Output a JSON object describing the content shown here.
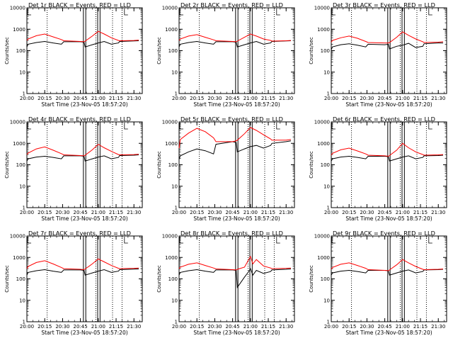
{
  "chart_data": [
    {
      "type": "line",
      "title": "Det 1r  BLACK = Events, RED = LLD",
      "xlabel": "Start Time (23-Nov-05 18:57:20)",
      "ylabel": "Counts/sec",
      "xlim": [
        "20:00",
        "21:37"
      ],
      "ylim": [
        1,
        10000
      ],
      "yscale": "log",
      "x_tick_labels": [
        "20:00",
        "20:15",
        "20:30",
        "20:45",
        "21:00",
        "21:15",
        "21:30"
      ],
      "y_tick_labels": [
        "1",
        "10",
        "100",
        "1000",
        "10000"
      ],
      "legend": "in title",
      "series": [
        {
          "color": "#000000",
          "x": [
            "20:00",
            "20:01",
            "20:08",
            "20:15",
            "20:22",
            "20:29",
            "20:31",
            "20:45",
            "20:48",
            "20:49",
            "20:55",
            "21:00",
            "21:05",
            "21:11",
            "21:17",
            "21:18",
            "21:30",
            "21:34"
          ],
          "y": [
            150,
            200,
            240,
            270,
            230,
            200,
            260,
            260,
            250,
            150,
            190,
            230,
            270,
            200,
            230,
            270,
            285,
            290
          ]
        },
        {
          "color": "#ff0000",
          "x": [
            "20:00",
            "20:01",
            "20:08",
            "20:15",
            "20:22",
            "20:29",
            "20:31",
            "20:45",
            "20:48",
            "20:49",
            "20:55",
            "21:00",
            "21:05",
            "21:11",
            "21:17",
            "21:18",
            "21:30",
            "21:34"
          ],
          "y": [
            300,
            350,
            500,
            600,
            440,
            330,
            290,
            270,
            260,
            280,
            480,
            800,
            600,
            400,
            300,
            290,
            300,
            310
          ]
        }
      ]
    },
    {
      "type": "line",
      "title": "Det 2r  BLACK = Events, RED = LLD",
      "xlabel": "Start Time (23-Nov-05 18:57:20)",
      "ylabel": "Counts/sec",
      "xlim": [
        "20:00",
        "21:37"
      ],
      "ylim": [
        1,
        10000
      ],
      "yscale": "log",
      "x_tick_labels": [
        "20:00",
        "20:15",
        "20:30",
        "20:45",
        "21:00",
        "21:15",
        "21:30"
      ],
      "y_tick_labels": [
        "1",
        "10",
        "100",
        "1000",
        "10000"
      ],
      "legend": "in title",
      "series": [
        {
          "color": "#000000",
          "x": [
            "20:00",
            "20:01",
            "20:08",
            "20:15",
            "20:22",
            "20:29",
            "20:31",
            "20:45",
            "20:48",
            "20:49",
            "20:55",
            "21:00",
            "21:05",
            "21:11",
            "21:17",
            "21:18",
            "21:30",
            "21:34"
          ],
          "y": [
            150,
            200,
            240,
            270,
            230,
            200,
            260,
            260,
            250,
            150,
            190,
            230,
            270,
            200,
            230,
            270,
            285,
            290
          ]
        },
        {
          "color": "#ff0000",
          "x": [
            "20:00",
            "20:01",
            "20:08",
            "20:15",
            "20:22",
            "20:29",
            "20:31",
            "20:45",
            "20:48",
            "20:49",
            "20:55",
            "21:00",
            "21:05",
            "21:11",
            "21:17",
            "21:18",
            "21:30",
            "21:34"
          ],
          "y": [
            300,
            350,
            480,
            560,
            420,
            320,
            290,
            270,
            260,
            280,
            420,
            600,
            480,
            350,
            300,
            280,
            290,
            300
          ]
        }
      ]
    },
    {
      "type": "line",
      "title": "Det 3r  BLACK = Events, RED = LLD",
      "xlabel": "Start Time (23-Nov-05 18:57:20)",
      "ylabel": "Counts/sec",
      "xlim": [
        "20:00",
        "21:37"
      ],
      "ylim": [
        1,
        10000
      ],
      "yscale": "log",
      "x_tick_labels": [
        "20:00",
        "20:15",
        "20:30",
        "20:45",
        "21:00",
        "21:15",
        "21:30"
      ],
      "y_tick_labels": [
        "1",
        "10",
        "100",
        "1000",
        "10000"
      ],
      "legend": "in title",
      "series": [
        {
          "color": "#000000",
          "x": [
            "20:00",
            "20:01",
            "20:08",
            "20:15",
            "20:22",
            "20:29",
            "20:31",
            "20:45",
            "20:48",
            "20:49",
            "20:55",
            "21:00",
            "21:05",
            "21:11",
            "21:17",
            "21:18",
            "21:30",
            "21:34"
          ],
          "y": [
            110,
            150,
            190,
            210,
            180,
            150,
            200,
            190,
            200,
            120,
            160,
            180,
            220,
            140,
            160,
            210,
            230,
            230
          ]
        },
        {
          "color": "#ff0000",
          "x": [
            "20:00",
            "20:01",
            "20:08",
            "20:15",
            "20:22",
            "20:29",
            "20:31",
            "20:45",
            "20:48",
            "20:49",
            "20:55",
            "21:00",
            "21:05",
            "21:11",
            "21:17",
            "21:18",
            "21:30",
            "21:34"
          ],
          "y": [
            250,
            300,
            400,
            480,
            380,
            270,
            240,
            230,
            230,
            240,
            420,
            750,
            520,
            350,
            260,
            240,
            250,
            260
          ]
        }
      ]
    },
    {
      "type": "line",
      "title": "Det 4r  BLACK = Events, RED = LLD",
      "xlabel": "Start Time (23-Nov-05 18:57:20)",
      "ylabel": "Counts/sec",
      "xlim": [
        "20:00",
        "21:37"
      ],
      "ylim": [
        1,
        10000
      ],
      "yscale": "log",
      "x_tick_labels": [
        "20:00",
        "20:15",
        "20:30",
        "20:45",
        "21:00",
        "21:15",
        "21:30"
      ],
      "y_tick_labels": [
        "1",
        "10",
        "100",
        "1000",
        "10000"
      ],
      "legend": "in title",
      "series": [
        {
          "color": "#000000",
          "x": [
            "20:00",
            "20:01",
            "20:08",
            "20:15",
            "20:22",
            "20:29",
            "20:31",
            "20:45",
            "20:48",
            "20:49",
            "20:55",
            "21:00",
            "21:05",
            "21:11",
            "21:17",
            "21:18",
            "21:30",
            "21:34"
          ],
          "y": [
            150,
            190,
            230,
            250,
            220,
            190,
            260,
            260,
            250,
            150,
            190,
            230,
            260,
            190,
            220,
            270,
            280,
            290
          ]
        },
        {
          "color": "#ff0000",
          "x": [
            "20:00",
            "20:01",
            "20:08",
            "20:15",
            "20:22",
            "20:29",
            "20:31",
            "20:45",
            "20:48",
            "20:49",
            "20:55",
            "21:00",
            "21:05",
            "21:11",
            "21:17",
            "21:18",
            "21:30",
            "21:34"
          ],
          "y": [
            300,
            350,
            550,
            680,
            480,
            330,
            290,
            270,
            260,
            280,
            500,
            900,
            620,
            420,
            300,
            290,
            300,
            310
          ]
        }
      ]
    },
    {
      "type": "line",
      "title": "Det 5r  BLACK = Events, RED = LLD",
      "xlabel": "Start Time (23-Nov-05 18:57:20)",
      "ylabel": "Counts/sec",
      "xlim": [
        "20:00",
        "21:37"
      ],
      "ylim": [
        1,
        10000
      ],
      "yscale": "log",
      "x_tick_labels": [
        "20:00",
        "20:15",
        "20:30",
        "20:45",
        "21:00",
        "21:15",
        "21:30"
      ],
      "y_tick_labels": [
        "1",
        "10",
        "100",
        "1000",
        "10000"
      ],
      "legend": "in title",
      "series": [
        {
          "color": "#000000",
          "x": [
            "20:00",
            "20:01",
            "20:08",
            "20:15",
            "20:22",
            "20:29",
            "20:31",
            "20:45",
            "20:48",
            "20:49",
            "20:55",
            "21:00",
            "21:05",
            "21:11",
            "21:17",
            "21:18",
            "21:30",
            "21:34"
          ],
          "y": [
            180,
            260,
            400,
            550,
            450,
            320,
            900,
            1200,
            1100,
            400,
            550,
            700,
            800,
            600,
            800,
            1000,
            1200,
            1300
          ]
        },
        {
          "color": "#ff0000",
          "x": [
            "20:00",
            "20:01",
            "20:08",
            "20:15",
            "20:22",
            "20:29",
            "20:31",
            "20:45",
            "20:48",
            "20:49",
            "20:55",
            "21:00",
            "21:05",
            "21:11",
            "21:17",
            "21:18",
            "21:30",
            "21:34"
          ],
          "y": [
            600,
            1500,
            3000,
            5000,
            3500,
            1800,
            1200,
            1200,
            1300,
            1400,
            2800,
            5500,
            4000,
            2500,
            1600,
            1400,
            1400,
            1500
          ]
        }
      ]
    },
    {
      "type": "line",
      "title": "Det 6r  BLACK = Events, RED = LLD",
      "xlabel": "Start Time (23-Nov-05 18:57:20)",
      "ylabel": "Counts/sec",
      "xlim": [
        "20:00",
        "21:37"
      ],
      "ylim": [
        1,
        10000
      ],
      "yscale": "log",
      "x_tick_labels": [
        "20:00",
        "20:15",
        "20:30",
        "20:45",
        "21:00",
        "21:15",
        "21:30"
      ],
      "y_tick_labels": [
        "1",
        "10",
        "100",
        "1000",
        "10000"
      ],
      "legend": "in title",
      "series": [
        {
          "color": "#000000",
          "x": [
            "20:00",
            "20:01",
            "20:08",
            "20:15",
            "20:22",
            "20:29",
            "20:31",
            "20:45",
            "20:48",
            "20:49",
            "20:55",
            "21:00",
            "21:05",
            "21:11",
            "21:17",
            "21:18",
            "21:30",
            "21:34"
          ],
          "y": [
            150,
            190,
            230,
            250,
            220,
            190,
            250,
            250,
            240,
            150,
            190,
            230,
            260,
            190,
            220,
            260,
            270,
            280
          ]
        },
        {
          "color": "#ff0000",
          "x": [
            "20:00",
            "20:01",
            "20:08",
            "20:15",
            "20:22",
            "20:29",
            "20:31",
            "20:45",
            "20:48",
            "20:49",
            "20:55",
            "21:00",
            "21:05",
            "21:11",
            "21:17",
            "21:18",
            "21:30",
            "21:34"
          ],
          "y": [
            280,
            340,
            500,
            600,
            440,
            320,
            280,
            260,
            250,
            270,
            480,
            1000,
            620,
            400,
            300,
            280,
            290,
            300
          ]
        }
      ]
    },
    {
      "type": "line",
      "title": "Det 7r  BLACK = Events, RED = LLD",
      "xlabel": "Start Time (23-Nov-05 18:57:20)",
      "ylabel": "Counts/sec",
      "xlim": [
        "20:00",
        "21:37"
      ],
      "ylim": [
        1,
        10000
      ],
      "yscale": "log",
      "x_tick_labels": [
        "20:00",
        "20:15",
        "20:30",
        "20:45",
        "21:00",
        "21:15",
        "21:30"
      ],
      "y_tick_labels": [
        "1",
        "10",
        "100",
        "1000",
        "10000"
      ],
      "legend": "in title",
      "series": [
        {
          "color": "#000000",
          "x": [
            "20:00",
            "20:01",
            "20:08",
            "20:15",
            "20:22",
            "20:29",
            "20:31",
            "20:45",
            "20:48",
            "20:49",
            "20:55",
            "21:00",
            "21:05",
            "21:11",
            "21:17",
            "21:18",
            "21:30",
            "21:34"
          ],
          "y": [
            150,
            200,
            240,
            270,
            230,
            200,
            260,
            260,
            250,
            150,
            190,
            230,
            270,
            200,
            230,
            270,
            285,
            290
          ]
        },
        {
          "color": "#ff0000",
          "x": [
            "20:00",
            "20:01",
            "20:08",
            "20:15",
            "20:22",
            "20:29",
            "20:31",
            "20:45",
            "20:48",
            "20:49",
            "20:55",
            "21:00",
            "21:05",
            "21:11",
            "21:17",
            "21:18",
            "21:30",
            "21:34"
          ],
          "y": [
            300,
            380,
            580,
            700,
            500,
            340,
            300,
            280,
            270,
            290,
            500,
            850,
            620,
            420,
            310,
            300,
            310,
            320
          ]
        }
      ]
    },
    {
      "type": "line",
      "title": "Det 8r  BLACK = Events, RED = LLD",
      "xlabel": "Start Time (23-Nov-05 18:57:20)",
      "ylabel": "Counts/sec",
      "xlim": [
        "20:00",
        "21:37"
      ],
      "ylim": [
        1,
        10000
      ],
      "yscale": "log",
      "x_tick_labels": [
        "20:00",
        "20:15",
        "20:30",
        "20:45",
        "21:00",
        "21:15",
        "21:30"
      ],
      "y_tick_labels": [
        "1",
        "10",
        "100",
        "1000",
        "10000"
      ],
      "legend": "in title",
      "series": [
        {
          "color": "#000000",
          "x": [
            "20:00",
            "20:01",
            "20:08",
            "20:15",
            "20:22",
            "20:29",
            "20:31",
            "20:45",
            "20:48",
            "20:49",
            "20:55",
            "20:58",
            "21:00",
            "21:02",
            "21:05",
            "21:11",
            "21:17",
            "21:18",
            "21:30",
            "21:34"
          ],
          "y": [
            150,
            200,
            240,
            270,
            230,
            200,
            260,
            260,
            250,
            40,
            120,
            200,
            300,
            150,
            250,
            180,
            220,
            260,
            280,
            290
          ]
        },
        {
          "color": "#ff0000",
          "x": [
            "20:00",
            "20:01",
            "20:08",
            "20:15",
            "20:22",
            "20:29",
            "20:31",
            "20:45",
            "20:48",
            "20:49",
            "20:55",
            "20:58",
            "21:00",
            "21:02",
            "21:05",
            "21:11",
            "21:17",
            "21:18",
            "21:30",
            "21:34"
          ],
          "y": [
            300,
            350,
            480,
            560,
            420,
            320,
            290,
            270,
            260,
            280,
            350,
            700,
            1100,
            500,
            800,
            400,
            320,
            300,
            310,
            320
          ]
        }
      ]
    },
    {
      "type": "line",
      "title": "Det 9r  BLACK = Events, RED = LLD",
      "xlabel": "Start Time (23-Nov-05 18:57:20)",
      "ylabel": "Counts/sec",
      "xlim": [
        "20:00",
        "21:37"
      ],
      "ylim": [
        1,
        10000
      ],
      "yscale": "log",
      "x_tick_labels": [
        "20:00",
        "20:15",
        "20:30",
        "20:45",
        "21:00",
        "21:15",
        "21:30"
      ],
      "y_tick_labels": [
        "1",
        "10",
        "100",
        "1000",
        "10000"
      ],
      "legend": "in title",
      "series": [
        {
          "color": "#000000",
          "x": [
            "20:00",
            "20:01",
            "20:08",
            "20:15",
            "20:22",
            "20:29",
            "20:31",
            "20:45",
            "20:48",
            "20:49",
            "20:55",
            "21:00",
            "21:05",
            "21:11",
            "21:17",
            "21:18",
            "21:30",
            "21:34"
          ],
          "y": [
            150,
            190,
            230,
            250,
            220,
            190,
            250,
            250,
            240,
            150,
            190,
            230,
            260,
            190,
            220,
            260,
            270,
            280
          ]
        },
        {
          "color": "#ff0000",
          "x": [
            "20:00",
            "20:01",
            "20:08",
            "20:15",
            "20:22",
            "20:29",
            "20:31",
            "20:45",
            "20:48",
            "20:49",
            "20:55",
            "21:00",
            "21:05",
            "21:11",
            "21:17",
            "21:18",
            "21:30",
            "21:34"
          ],
          "y": [
            280,
            340,
            480,
            560,
            420,
            310,
            270,
            250,
            240,
            260,
            450,
            800,
            560,
            380,
            280,
            270,
            280,
            290
          ]
        }
      ]
    }
  ]
}
